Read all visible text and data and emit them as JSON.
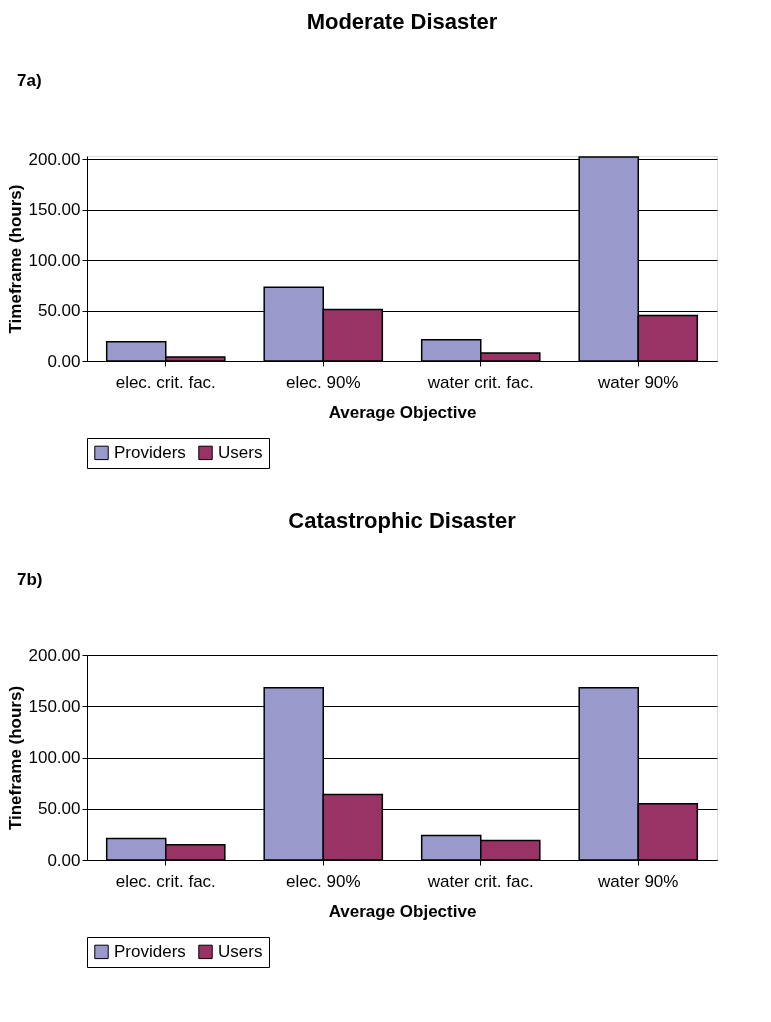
{
  "chart_data": [
    {
      "type": "bar",
      "title": "Moderate Disaster",
      "annotations": [
        "7a)"
      ],
      "xlabel": "Average Objective",
      "ylabel": "Timeframe (hours)",
      "categories": [
        "elec. crit. fac.",
        "elec. 90%",
        "water crit. fac.",
        "water 90%"
      ],
      "series": [
        {
          "name": "Providers",
          "color": "#9999cc",
          "values": [
            19,
            73,
            21,
            202
          ]
        },
        {
          "name": "Users",
          "color": "#993366",
          "values": [
            4,
            51,
            8,
            45
          ]
        }
      ],
      "ylim": [
        0,
        203
      ],
      "yticks": [
        {
          "value": 0,
          "label": "0.00"
        },
        {
          "value": 50,
          "label": "50.00"
        },
        {
          "value": 100,
          "label": "100.00"
        },
        {
          "value": 150,
          "label": "150.00"
        },
        {
          "value": 200,
          "label": "200.00"
        }
      ],
      "grid": "y",
      "legend": "bottom"
    },
    {
      "type": "bar",
      "title": "Catastrophic Disaster",
      "annotations": [
        "7b)"
      ],
      "xlabel": "Average Objective",
      "ylabel": "Tineframe (hours)",
      "categories": [
        "elec. crit. fac.",
        "elec. 90%",
        "water crit. fac.",
        "water 90%"
      ],
      "series": [
        {
          "name": "Providers",
          "color": "#9999cc",
          "values": [
            21,
            168,
            24,
            168
          ]
        },
        {
          "name": "Users",
          "color": "#993366",
          "values": [
            15,
            64,
            19,
            55
          ]
        }
      ],
      "ylim": [
        0,
        200
      ],
      "yticks": [
        {
          "value": 0,
          "label": "0.00"
        },
        {
          "value": 50,
          "label": "50.00"
        },
        {
          "value": 100,
          "label": "100.00"
        },
        {
          "value": 150,
          "label": "150.00"
        },
        {
          "value": 200,
          "label": "200.00"
        }
      ],
      "grid": "y",
      "legend": "bottom"
    }
  ]
}
